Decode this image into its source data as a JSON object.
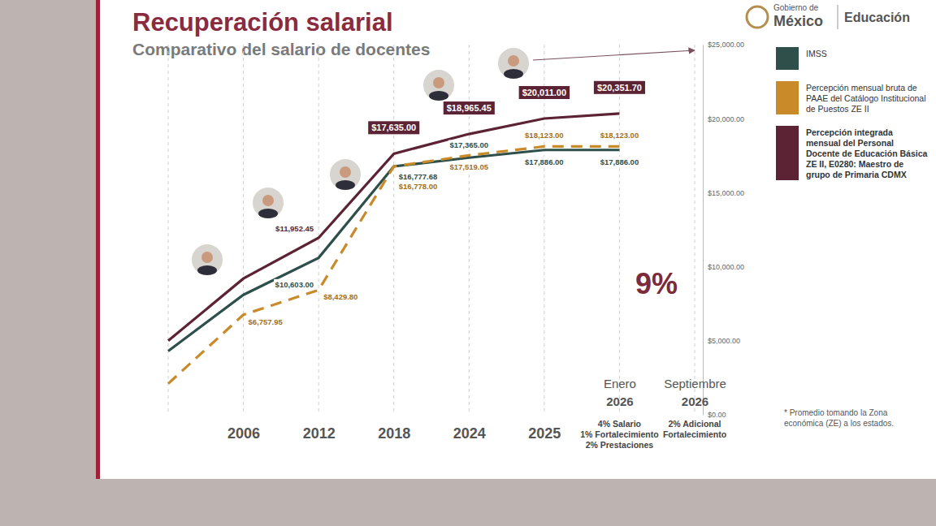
{
  "chart_data": {
    "type": "line",
    "title": "Recuperación salarial",
    "subtitle": "Comparativo del salario de docentes",
    "logos": [
      "Gobierno de",
      "México",
      "Educación"
    ],
    "categories": [
      null,
      "2006",
      "2012",
      "2018",
      "2024",
      "2025",
      "Enero 2026",
      "Septiembre 2026"
    ],
    "category_notes": [
      null,
      null,
      null,
      null,
      null,
      null,
      [
        "4% Salario",
        "1% Fortalecimiento",
        "2% Prestaciones"
      ],
      [
        "2% Adicional",
        "Fortalecimiento"
      ]
    ],
    "series": [
      {
        "name": "IMSS",
        "color": "#2f4f4a",
        "line_style": "solid",
        "values": [
          4300,
          8102.79,
          10603,
          16777.68,
          17365,
          17886,
          17886,
          null
        ],
        "value_labels": [
          null,
          null,
          "$10,603.00",
          "$16,777.68",
          "$17,365.00",
          "$17,886.00",
          "$17,886.00",
          null
        ]
      },
      {
        "name": "Percepción mensual bruta de PAAE del Catálogo Institucional de Puestos ZE II",
        "color": "#c98a2a",
        "line_style": "dashed",
        "values": [
          2100,
          6757.95,
          8429.8,
          16778,
          17519.05,
          18123,
          18123,
          null
        ],
        "value_labels": [
          null,
          "$6,757.95",
          "$8,429.80",
          "$16,778.00",
          "$17,519.05",
          "$18,123.00",
          "$18,123.00",
          null
        ]
      },
      {
        "name": "Percepción integrada mensual del Personal Docente de Educación Básica ZE II, E0280: Maestro de grupo de Primaria CDMX",
        "color": "#5b2333",
        "line_style": "solid",
        "values": [
          5000,
          9200,
          11952.45,
          17635,
          18965.45,
          20011,
          20351.7,
          null
        ],
        "value_labels": [
          null,
          null,
          "$11,952.45",
          "$17,635.00",
          "$18,965.45",
          "$20,011.00",
          "$20,351.70",
          null
        ]
      }
    ],
    "annotations": [
      "9%"
    ],
    "footnote": "* Promedio tomando la Zona económica (ZE) a los estados.",
    "ylim": [
      0,
      25000
    ],
    "yticks": [
      {
        "value": 0,
        "label": "$0.00"
      },
      {
        "value": 5000,
        "label": "$5,000.00"
      },
      {
        "value": 10000,
        "label": "$10,000.00"
      },
      {
        "value": 15000,
        "label": "$15,000.00"
      },
      {
        "value": 20000,
        "label": "$20,000.00"
      },
      {
        "value": 25000,
        "label": "$25,000.00"
      }
    ],
    "grid": true,
    "legend": "right",
    "data_labels": true
  }
}
